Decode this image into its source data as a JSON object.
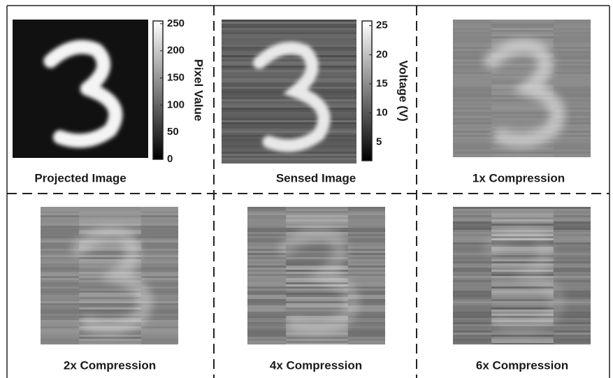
{
  "panels": [
    {
      "caption": "Projected Image"
    },
    {
      "caption": "Sensed Image"
    },
    {
      "caption": "1x Compression"
    },
    {
      "caption": "2x Compression"
    },
    {
      "caption": "4x Compression"
    },
    {
      "caption": "6x Compression"
    }
  ],
  "colorbars": [
    {
      "label": "Pixel Value",
      "range": [
        0,
        255
      ],
      "ticks": [
        0,
        50,
        100,
        150,
        200,
        250
      ]
    },
    {
      "label": "Voltage (V)",
      "range": [
        1.8,
        25.8
      ],
      "ticks": [
        5,
        10,
        15,
        20,
        25
      ]
    }
  ]
}
